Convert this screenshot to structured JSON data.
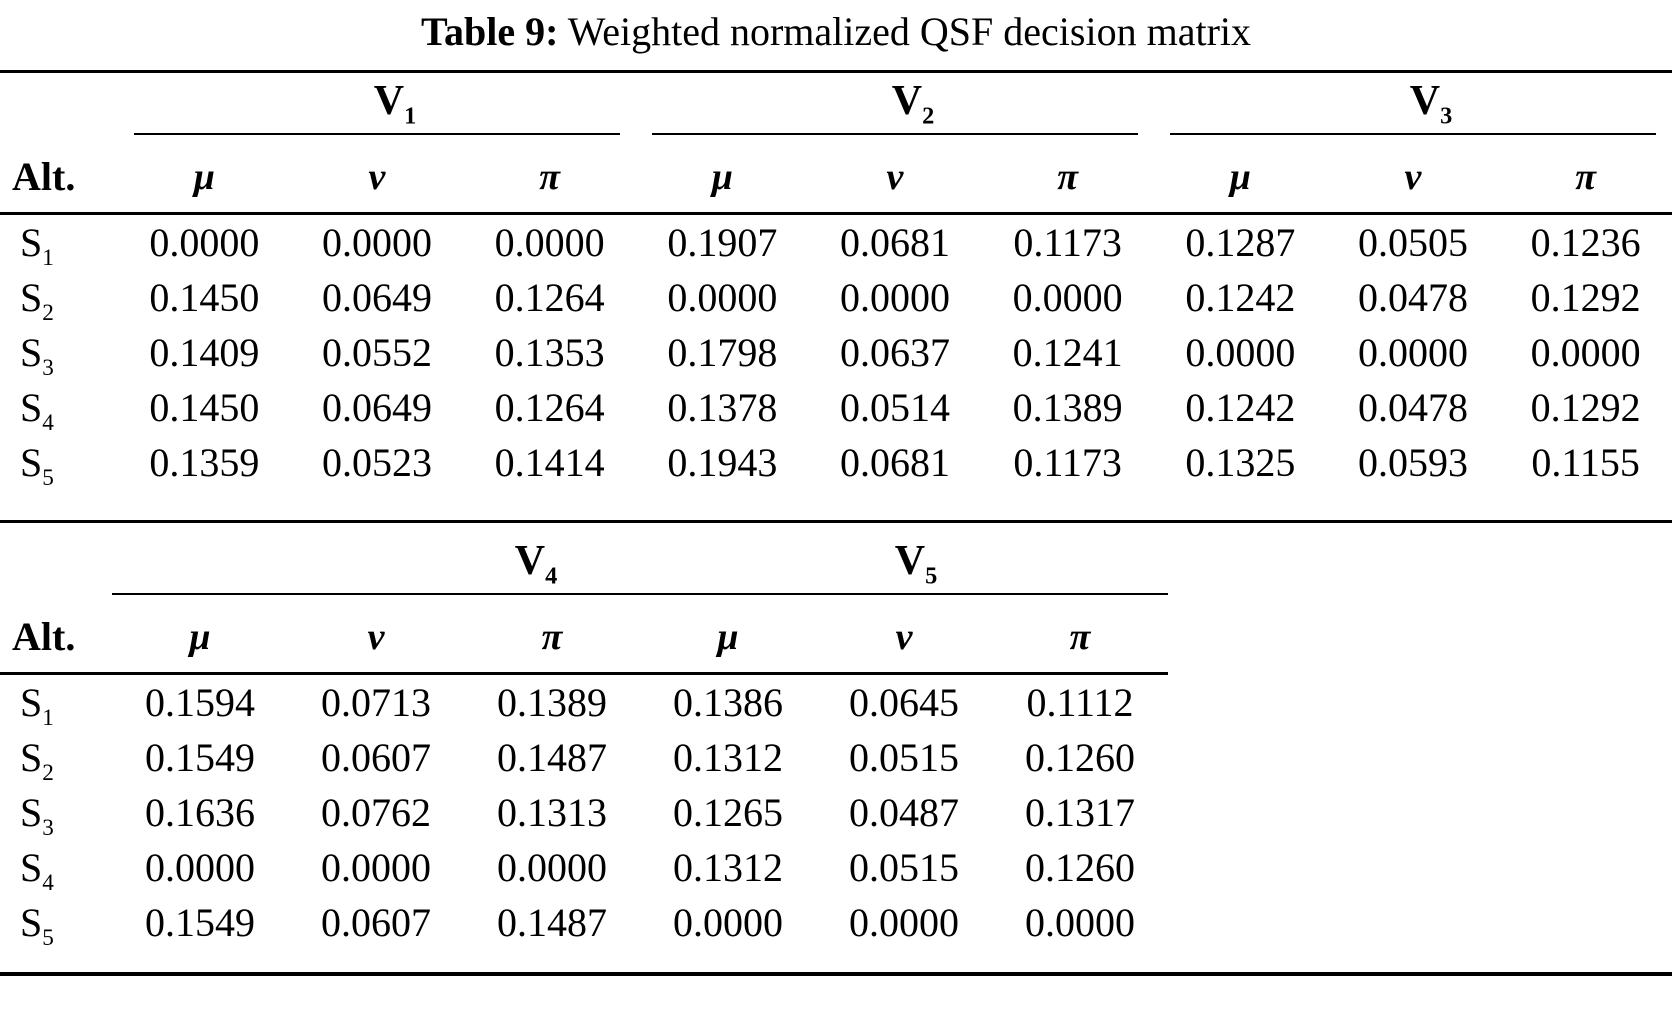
{
  "page": {
    "title_label": "Table 9:",
    "title_caption": "Weighted normalized QSF decision matrix"
  },
  "table1": {
    "alt_header": "Alt.",
    "groups": [
      {
        "base": "V",
        "sub": "1"
      },
      {
        "base": "V",
        "sub": "2"
      },
      {
        "base": "V",
        "sub": "3"
      }
    ],
    "subheaders": [
      "μ",
      "ν",
      "π",
      "μ",
      "ν",
      "π",
      "μ",
      "ν",
      "π"
    ],
    "rows": [
      {
        "label": {
          "base": "S",
          "sub": "1"
        },
        "values": [
          "0.0000",
          "0.0000",
          "0.0000",
          "0.1907",
          "0.0681",
          "0.1173",
          "0.1287",
          "0.0505",
          "0.1236"
        ]
      },
      {
        "label": {
          "base": "S",
          "sub": "2"
        },
        "values": [
          "0.1450",
          "0.0649",
          "0.1264",
          "0.0000",
          "0.0000",
          "0.0000",
          "0.1242",
          "0.0478",
          "0.1292"
        ]
      },
      {
        "label": {
          "base": "S",
          "sub": "3"
        },
        "values": [
          "0.1409",
          "0.0552",
          "0.1353",
          "0.1798",
          "0.0637",
          "0.1241",
          "0.0000",
          "0.0000",
          "0.0000"
        ]
      },
      {
        "label": {
          "base": "S",
          "sub": "4"
        },
        "values": [
          "0.1450",
          "0.0649",
          "0.1264",
          "0.1378",
          "0.0514",
          "0.1389",
          "0.1242",
          "0.0478",
          "0.1292"
        ]
      },
      {
        "label": {
          "base": "S",
          "sub": "5"
        },
        "values": [
          "0.1359",
          "0.0523",
          "0.1414",
          "0.1943",
          "0.0681",
          "0.1173",
          "0.1325",
          "0.0593",
          "0.1155"
        ]
      }
    ]
  },
  "table2": {
    "alt_header": "Alt.",
    "groups": [
      {
        "base": "V",
        "sub": "4"
      },
      {
        "base": "V",
        "sub": "5"
      }
    ],
    "subheaders": [
      "μ",
      "ν",
      "π",
      "μ",
      "ν",
      "π"
    ],
    "rows": [
      {
        "label": {
          "base": "S",
          "sub": "1"
        },
        "values": [
          "0.1594",
          "0.0713",
          "0.1389",
          "0.1386",
          "0.0645",
          "0.1112"
        ]
      },
      {
        "label": {
          "base": "S",
          "sub": "2"
        },
        "values": [
          "0.1549",
          "0.0607",
          "0.1487",
          "0.1312",
          "0.0515",
          "0.1260"
        ]
      },
      {
        "label": {
          "base": "S",
          "sub": "3"
        },
        "values": [
          "0.1636",
          "0.0762",
          "0.1313",
          "0.1265",
          "0.0487",
          "0.1317"
        ]
      },
      {
        "label": {
          "base": "S",
          "sub": "4"
        },
        "values": [
          "0.0000",
          "0.0000",
          "0.0000",
          "0.1312",
          "0.0515",
          "0.1260"
        ]
      },
      {
        "label": {
          "base": "S",
          "sub": "5"
        },
        "values": [
          "0.1549",
          "0.0607",
          "0.1487",
          "0.0000",
          "0.0000",
          "0.0000"
        ]
      }
    ]
  }
}
